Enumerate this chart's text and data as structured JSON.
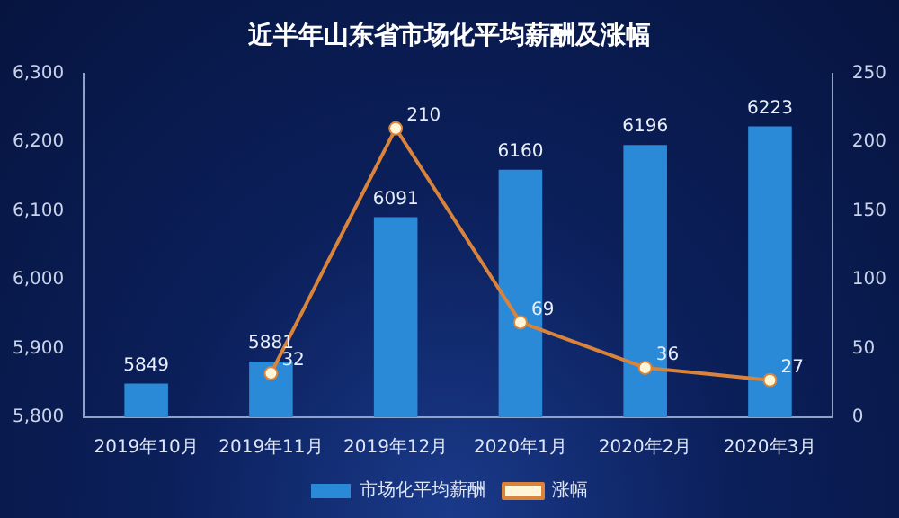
{
  "chart_data": {
    "type": "bar",
    "title": "近半年山东省市场化平均薪酬及涨幅",
    "categories": [
      "2019年10月",
      "2019年11月",
      "2019年12月",
      "2020年1月",
      "2020年2月",
      "2020年3月"
    ],
    "series": [
      {
        "name": "市场化平均薪酬",
        "color": "#2a8ad8",
        "values": [
          5849,
          5881,
          6091,
          6160,
          6196,
          6223
        ]
      },
      {
        "name": "涨幅",
        "type": "line",
        "axis": "y2",
        "color": "#d9843a",
        "values": [
          null,
          32,
          210,
          69,
          36,
          27
        ]
      }
    ],
    "ylim": [
      5800,
      6300
    ],
    "yticks": [
      {
        "value": 5800,
        "label": "5,800"
      },
      {
        "value": 5900,
        "label": "5,900"
      },
      {
        "value": 6000,
        "label": "6,000"
      },
      {
        "value": 6100,
        "label": "6,100"
      },
      {
        "value": 6200,
        "label": "6,200"
      },
      {
        "value": 6300,
        "label": "6,300"
      }
    ],
    "y2lim": [
      0,
      250
    ],
    "y2ticks": [
      0,
      50,
      100,
      150,
      200,
      250
    ],
    "data_labels": true,
    "grid": false,
    "legend": "bottom",
    "marker": "circle"
  }
}
